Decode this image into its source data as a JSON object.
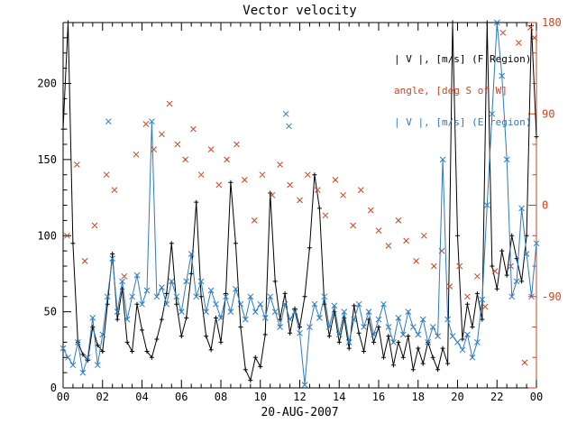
{
  "title": "Vector velocity",
  "legend": [
    {
      "label": "| V |, [m/s] (F Region)",
      "color": "#000000"
    },
    {
      "label": "angle, [deg S of W]",
      "color": "#cc4422"
    },
    {
      "label": "| V |, [m/s] (E region)",
      "color": "#2e7bbf"
    }
  ],
  "axes": {
    "x": {
      "label": "20-AUG-2007",
      "range_hours": [
        0,
        24
      ],
      "tick_labels": [
        "00",
        "02",
        "04",
        "06",
        "08",
        "10",
        "12",
        "14",
        "16",
        "18",
        "20",
        "22",
        "00"
      ]
    },
    "y_left": {
      "range": [
        0,
        240
      ],
      "tick_values": [
        0,
        50,
        100,
        150,
        200
      ],
      "tick_labels": [
        "0",
        "50",
        "100",
        "150",
        "200"
      ],
      "color": "#000000"
    },
    "y_right": {
      "range": [
        -180,
        180
      ],
      "tick_values": [
        180,
        90,
        0,
        -90
      ],
      "tick_labels": [
        "180",
        "90",
        "0",
        "-90"
      ],
      "color": "#cc4422"
    }
  },
  "chart_data": {
    "type": "line",
    "title": "Vector velocity",
    "xlabel": "20-AUG-2007",
    "x_unit": "hours",
    "series": [
      {
        "name": "|V| F Region [m/s]",
        "axis": "left",
        "color": "#000000",
        "marker": "plus",
        "line": true,
        "x_start": 0,
        "x_step": 0.25,
        "values": [
          170,
          240,
          95,
          30,
          22,
          18,
          40,
          28,
          24,
          55,
          88,
          45,
          65,
          30,
          24,
          55,
          38,
          24,
          20,
          32,
          45,
          62,
          95,
          55,
          34,
          46,
          75,
          122,
          60,
          34,
          25,
          46,
          30,
          62,
          135,
          95,
          40,
          12,
          5,
          20,
          14,
          35,
          128,
          70,
          45,
          62,
          36,
          52,
          40,
          60,
          92,
          140,
          118,
          55,
          34,
          50,
          30,
          46,
          26,
          54,
          36,
          24,
          45,
          30,
          40,
          20,
          34,
          15,
          30,
          20,
          34,
          12,
          26,
          16,
          30,
          20,
          12,
          26,
          16,
          240,
          100,
          32,
          55,
          40,
          62,
          45,
          240,
          80,
          65,
          90,
          74,
          100,
          85,
          70,
          100,
          238,
          165
        ]
      },
      {
        "name": "angle [deg S of W]",
        "axis": "right",
        "color": "#cc4422",
        "marker": "x",
        "line": false,
        "x": [
          0.2,
          0.7,
          1.1,
          1.6,
          2.2,
          2.6,
          3.1,
          3.7,
          4.2,
          4.6,
          5.0,
          5.4,
          5.8,
          6.2,
          6.6,
          7.0,
          7.5,
          7.9,
          8.3,
          8.8,
          9.2,
          9.7,
          10.1,
          10.6,
          11.0,
          11.5,
          12.0,
          12.4,
          12.9,
          13.3,
          13.8,
          14.2,
          14.7,
          15.1,
          15.6,
          16.0,
          16.5,
          17.0,
          17.4,
          17.9,
          18.3,
          18.8,
          19.2,
          19.6,
          20.1,
          20.5,
          21.0,
          21.4,
          21.9,
          22.3,
          22.7,
          23.1,
          23.4,
          23.7,
          23.9
        ],
        "values": [
          -30,
          40,
          -55,
          -20,
          30,
          15,
          -70,
          50,
          80,
          55,
          70,
          100,
          60,
          45,
          75,
          30,
          55,
          20,
          45,
          60,
          25,
          -15,
          30,
          10,
          40,
          20,
          5,
          30,
          15,
          -10,
          25,
          10,
          -20,
          15,
          -5,
          -25,
          -40,
          -15,
          -35,
          -55,
          -30,
          -60,
          -45,
          -80,
          -60,
          -90,
          -70,
          -100,
          -65,
          170,
          -60,
          160,
          -155,
          175,
          165
        ]
      },
      {
        "name": "|V| E region [m/s]",
        "axis": "left",
        "color": "#2e7bbf",
        "marker": "x",
        "line": true,
        "x_start": 0,
        "x_step": 0.25,
        "values": [
          26,
          20,
          15,
          30,
          10,
          20,
          46,
          15,
          35,
          60,
          85,
          50,
          70,
          45,
          60,
          74,
          55,
          64,
          175,
          60,
          66,
          55,
          70,
          60,
          50,
          70,
          88,
          60,
          70,
          50,
          64,
          55,
          46,
          60,
          50,
          65,
          55,
          45,
          60,
          50,
          55,
          46,
          60,
          50,
          40,
          55,
          45,
          50,
          36,
          2,
          40,
          55,
          46,
          60,
          40,
          54,
          35,
          50,
          30,
          45,
          55,
          40,
          50,
          35,
          45,
          55,
          40,
          30,
          46,
          35,
          50,
          40,
          35,
          45,
          30,
          40,
          34,
          150,
          45,
          34,
          30,
          25,
          35,
          20,
          30,
          58,
          120,
          180,
          240,
          205,
          150,
          60,
          70,
          118,
          88,
          60,
          95
        ]
      },
      {
        "name": "|V| E region outliers [m/s]",
        "axis": "left",
        "color": "#2e7bbf",
        "marker": "x",
        "line": false,
        "x": [
          2.3,
          11.3,
          11.45
        ],
        "values": [
          175,
          180,
          172
        ]
      }
    ]
  }
}
